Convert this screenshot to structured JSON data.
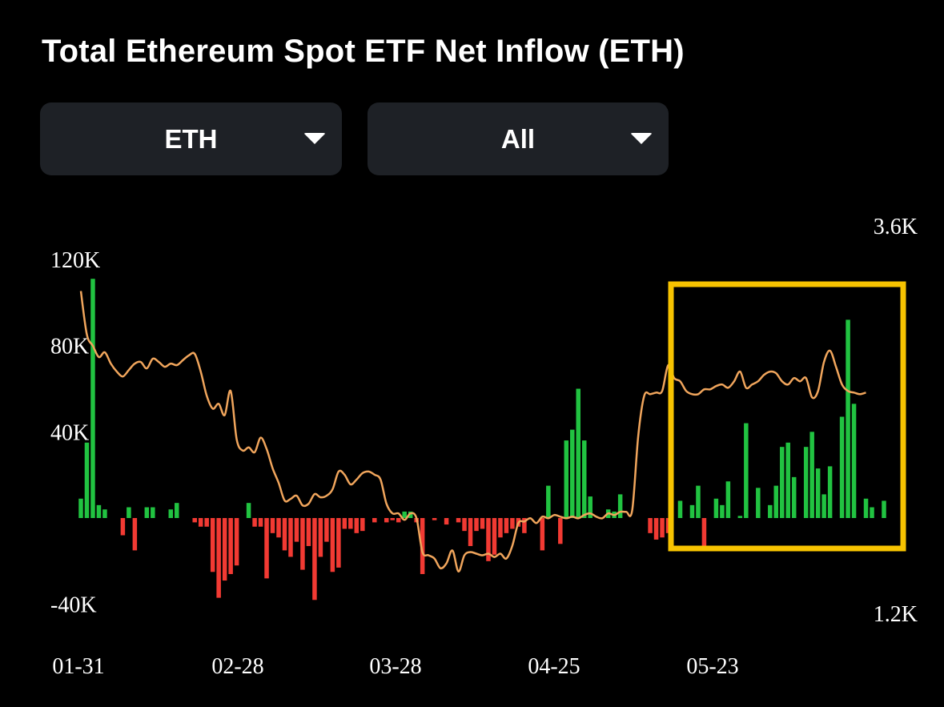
{
  "title": "Total Ethereum Spot ETF Net Inflow (ETH)",
  "controls": {
    "unit_select": {
      "value": "ETH",
      "icon": "caret-down-icon"
    },
    "range_select": {
      "value": "All",
      "icon": "caret-down-icon"
    }
  },
  "colors": {
    "background": "#000000",
    "inflow_bar": "#21c341",
    "outflow_bar": "#f23a33",
    "line": "#f0a55c",
    "highlight_box": "#f7c300",
    "dropdown_bg": "#1e2126"
  },
  "chart_data": {
    "type": "bar",
    "title": "Total Ethereum Spot ETF Net Inflow (ETH)",
    "xlabel": "",
    "ylabel": "",
    "x_tick_labels": [
      "01-31",
      "02-28",
      "03-28",
      "04-25",
      "05-23"
    ],
    "y_left": {
      "ticks": [
        "120K",
        "80K",
        "40K",
        "-40K"
      ],
      "ylim": [
        -40000,
        120000
      ]
    },
    "y_right": {
      "ticks": [
        "3.6K",
        "1.2K"
      ],
      "ylim": [
        1200,
        3600
      ]
    },
    "grid": false,
    "legend": "none",
    "series": [
      {
        "kind": "bar",
        "axis": "left",
        "values": [
          9000,
          35000,
          111000,
          6000,
          4000,
          0,
          0,
          -8000,
          5000,
          -15000,
          0,
          5000,
          5000,
          0,
          0,
          4000,
          7000,
          0,
          0,
          -2000,
          -4000,
          -4000,
          -25000,
          -37000,
          -29000,
          -26000,
          -22000,
          0,
          7000,
          -4000,
          -4000,
          -28000,
          -7000,
          -9000,
          -15000,
          -18000,
          -11000,
          -24000,
          -13000,
          -38000,
          -18000,
          -11000,
          -25000,
          -23000,
          -5000,
          -5000,
          -7000,
          -6000,
          0,
          -2000,
          0,
          -2000,
          -1000,
          -2000,
          3000,
          3000,
          -2000,
          -26000,
          0,
          -1000,
          0,
          -3000,
          0,
          -2000,
          -6000,
          -13000,
          -6000,
          -5000,
          -20000,
          -17000,
          -9000,
          -7000,
          -5000,
          -4000,
          -7000,
          0,
          0,
          -15000,
          15000,
          0,
          -12000,
          36000,
          41000,
          60000,
          36000,
          10000,
          0,
          0,
          4000,
          3000,
          11000,
          0,
          0,
          0,
          0,
          -7000,
          -10000,
          -9000,
          -7000,
          0,
          8000,
          0,
          6000,
          15000,
          -14000,
          0,
          9000,
          6000,
          17000,
          0,
          1000,
          44000,
          0,
          14000,
          0,
          6000,
          15000,
          33000,
          35000,
          19000,
          0,
          33000,
          40000,
          23000,
          11000,
          24000,
          0,
          47000,
          92000,
          53000,
          0,
          9000,
          5000,
          0,
          8000
        ]
      },
      {
        "kind": "line",
        "axis": "right",
        "values": [
          3200,
          2930,
          2860,
          2790,
          2820,
          2750,
          2700,
          2670,
          2710,
          2750,
          2760,
          2720,
          2780,
          2760,
          2730,
          2750,
          2740,
          2770,
          2800,
          2810,
          2700,
          2550,
          2470,
          2500,
          2430,
          2580,
          2280,
          2210,
          2230,
          2200,
          2290,
          2220,
          2100,
          2010,
          1900,
          1910,
          1930,
          1870,
          1880,
          1940,
          1920,
          1930,
          1970,
          2080,
          2060,
          2000,
          2030,
          2070,
          2080,
          2060,
          2030,
          1880,
          1820,
          1820,
          1780,
          1820,
          1790,
          1580,
          1560,
          1540,
          1480,
          1510,
          1590,
          1460,
          1560,
          1580,
          1570,
          1560,
          1570,
          1550,
          1570,
          1540,
          1620,
          1760,
          1770,
          1790,
          1760,
          1800,
          1790,
          1810,
          1800,
          1790,
          1800,
          1790,
          1810,
          1820,
          1800,
          1790,
          1820,
          1810,
          1830,
          1830,
          1840,
          2300,
          2550,
          2560,
          2570,
          2580,
          2740,
          2660,
          2640,
          2580,
          2560,
          2560,
          2590,
          2590,
          2610,
          2620,
          2600,
          2640,
          2700,
          2600,
          2620,
          2640,
          2680,
          2700,
          2690,
          2640,
          2620,
          2660,
          2640,
          2660,
          2540,
          2580,
          2760,
          2830,
          2730,
          2620,
          2580,
          2570,
          2560,
          2570
        ]
      }
    ],
    "annotations": [
      {
        "type": "highlight-box",
        "color": "#f7c300",
        "x_start": "05-16",
        "x_end": "06-20"
      }
    ]
  }
}
